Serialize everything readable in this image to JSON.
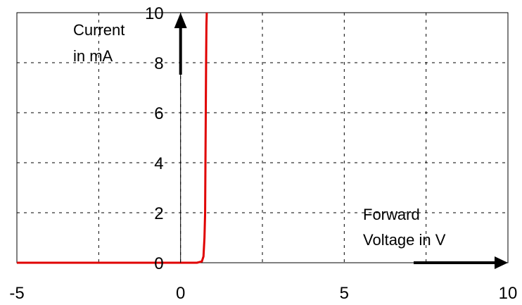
{
  "chart_data": {
    "type": "line",
    "title": "",
    "xlabel": "Forward Voltage in V",
    "ylabel": "Current in mA",
    "xlabel_lines": [
      "Forward",
      "Voltage in V"
    ],
    "ylabel_lines": [
      "Current",
      "in mA"
    ],
    "xlim": [
      -5,
      10
    ],
    "ylim": [
      0,
      10
    ],
    "x_ticks": [
      -5,
      0,
      5,
      10
    ],
    "y_ticks": [
      0,
      2,
      4,
      6,
      8,
      10
    ],
    "x_tick_labels": [
      "-5",
      "0",
      "5",
      "10"
    ],
    "y_tick_labels": [
      "0",
      "2",
      "4",
      "6",
      "8",
      "10"
    ],
    "grid": true,
    "legend": "none",
    "series": [
      {
        "color": "#e00000",
        "x": [
          -5,
          0,
          0.5,
          0.65,
          0.7,
          0.73,
          0.75,
          0.76,
          0.77,
          0.78,
          0.79,
          0.8
        ],
        "y": [
          0,
          0,
          0,
          0.05,
          0.25,
          1.0,
          2.0,
          4.0,
          6.0,
          8.0,
          9.5,
          10
        ]
      }
    ],
    "zero_line_segment": {
      "x": [
        0.8,
        10
      ],
      "y": [
        0,
        0
      ],
      "color": "#000000",
      "style": "dotted"
    }
  }
}
